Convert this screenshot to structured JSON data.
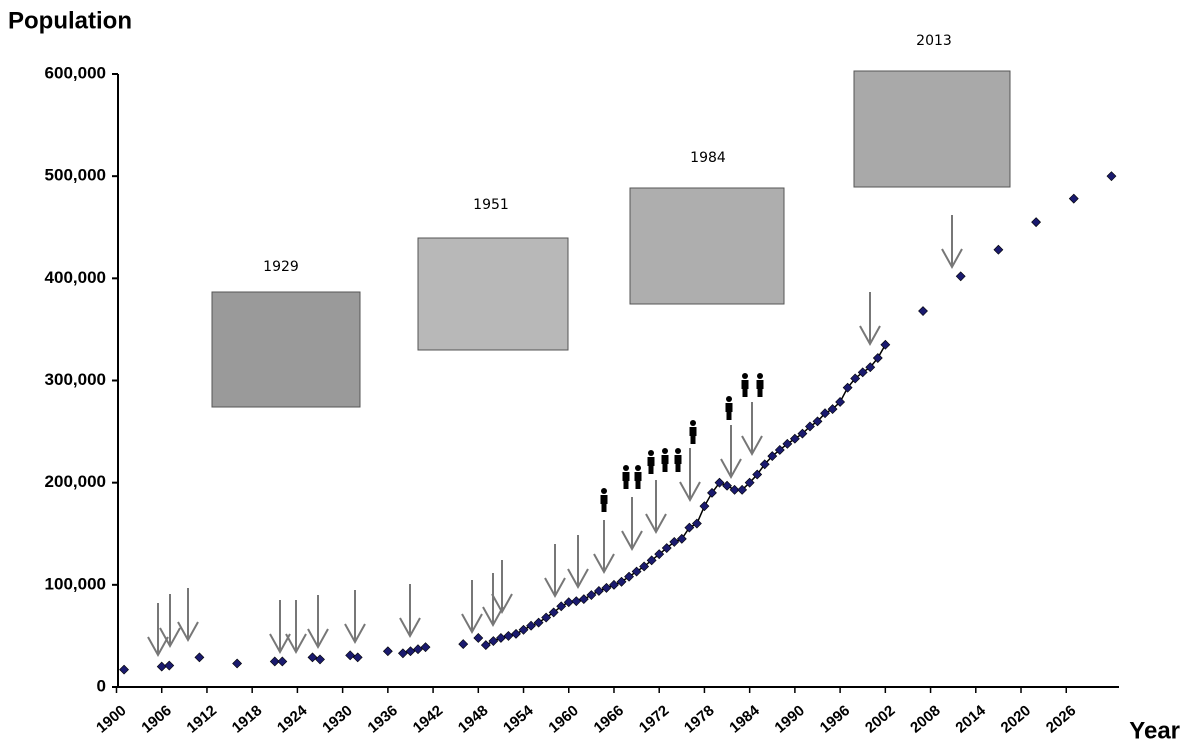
{
  "chart_data": {
    "type": "scatter",
    "title": "Population",
    "x_label": "Year",
    "annotations": [
      "1929",
      "1951",
      "1984",
      "2013"
    ],
    "xlim": [
      1900,
      2033
    ],
    "xticks": [
      1900,
      1906,
      1912,
      1918,
      1924,
      1930,
      1936,
      1942,
      1948,
      1954,
      1960,
      1966,
      1972,
      1978,
      1984,
      1990,
      1996,
      2002,
      2008,
      2014,
      2020,
      2026
    ],
    "ylim": [
      0,
      600000
    ],
    "yticks": [
      0,
      {
        "value": 100000,
        "label": "100,000"
      },
      {
        "value": 200000,
        "label": "200,000"
      },
      {
        "value": 300000,
        "label": "300,000"
      },
      {
        "value": 400000,
        "label": "400,000"
      },
      {
        "value": 500000,
        "label": "500,000"
      },
      {
        "value": 600000,
        "label": "600,000"
      }
    ],
    "series": [
      {
        "color": "#1a1a6e",
        "line": false,
        "x": [
          1901,
          1906,
          1907,
          1911,
          1916,
          1921,
          1922,
          1926,
          1927,
          1931,
          1932,
          1936,
          1938,
          1939,
          1940,
          1941,
          1946,
          1948,
          2007,
          2012,
          2017,
          2022,
          2027,
          2032
        ],
        "values": [
          17000,
          20000,
          21000,
          29000,
          23000,
          25000,
          25000,
          29000,
          27000,
          31000,
          29000,
          35000,
          33000,
          35000,
          37000,
          39000,
          42000,
          48000,
          368000,
          402000,
          428000,
          455000,
          478000,
          500000
        ]
      },
      {
        "color": "#1a1a6e",
        "line": true,
        "x": [
          1949,
          1950,
          1951,
          1952,
          1953,
          1954,
          1955,
          1956,
          1957,
          1958,
          1959,
          1960,
          1961,
          1962,
          1963,
          1964,
          1965,
          1966,
          1967,
          1968,
          1969,
          1970,
          1971,
          1972,
          1973,
          1974,
          1975,
          1976,
          1977,
          1978,
          1979,
          1980,
          1981,
          1982,
          1983,
          1984,
          1985,
          1986,
          1987,
          1988,
          1989,
          1990,
          1991,
          1992,
          1993,
          1994,
          1995,
          1996,
          1997,
          1998,
          1999,
          2000,
          2001,
          2002
        ],
        "values": [
          41000,
          45000,
          48000,
          50000,
          52000,
          56000,
          60000,
          63000,
          68000,
          73000,
          79000,
          83000,
          84000,
          86000,
          90000,
          94000,
          97000,
          100000,
          103000,
          108000,
          113000,
          118000,
          124000,
          130000,
          136000,
          142000,
          145000,
          156000,
          160000,
          177000,
          190000,
          200000,
          197000,
          193000,
          193000,
          200000,
          208000,
          218000,
          226000,
          232000,
          238000,
          243000,
          248000,
          255000,
          260000,
          268000,
          272000,
          279000,
          293000,
          302000,
          308000,
          313000,
          322000,
          335000
        ]
      }
    ]
  }
}
